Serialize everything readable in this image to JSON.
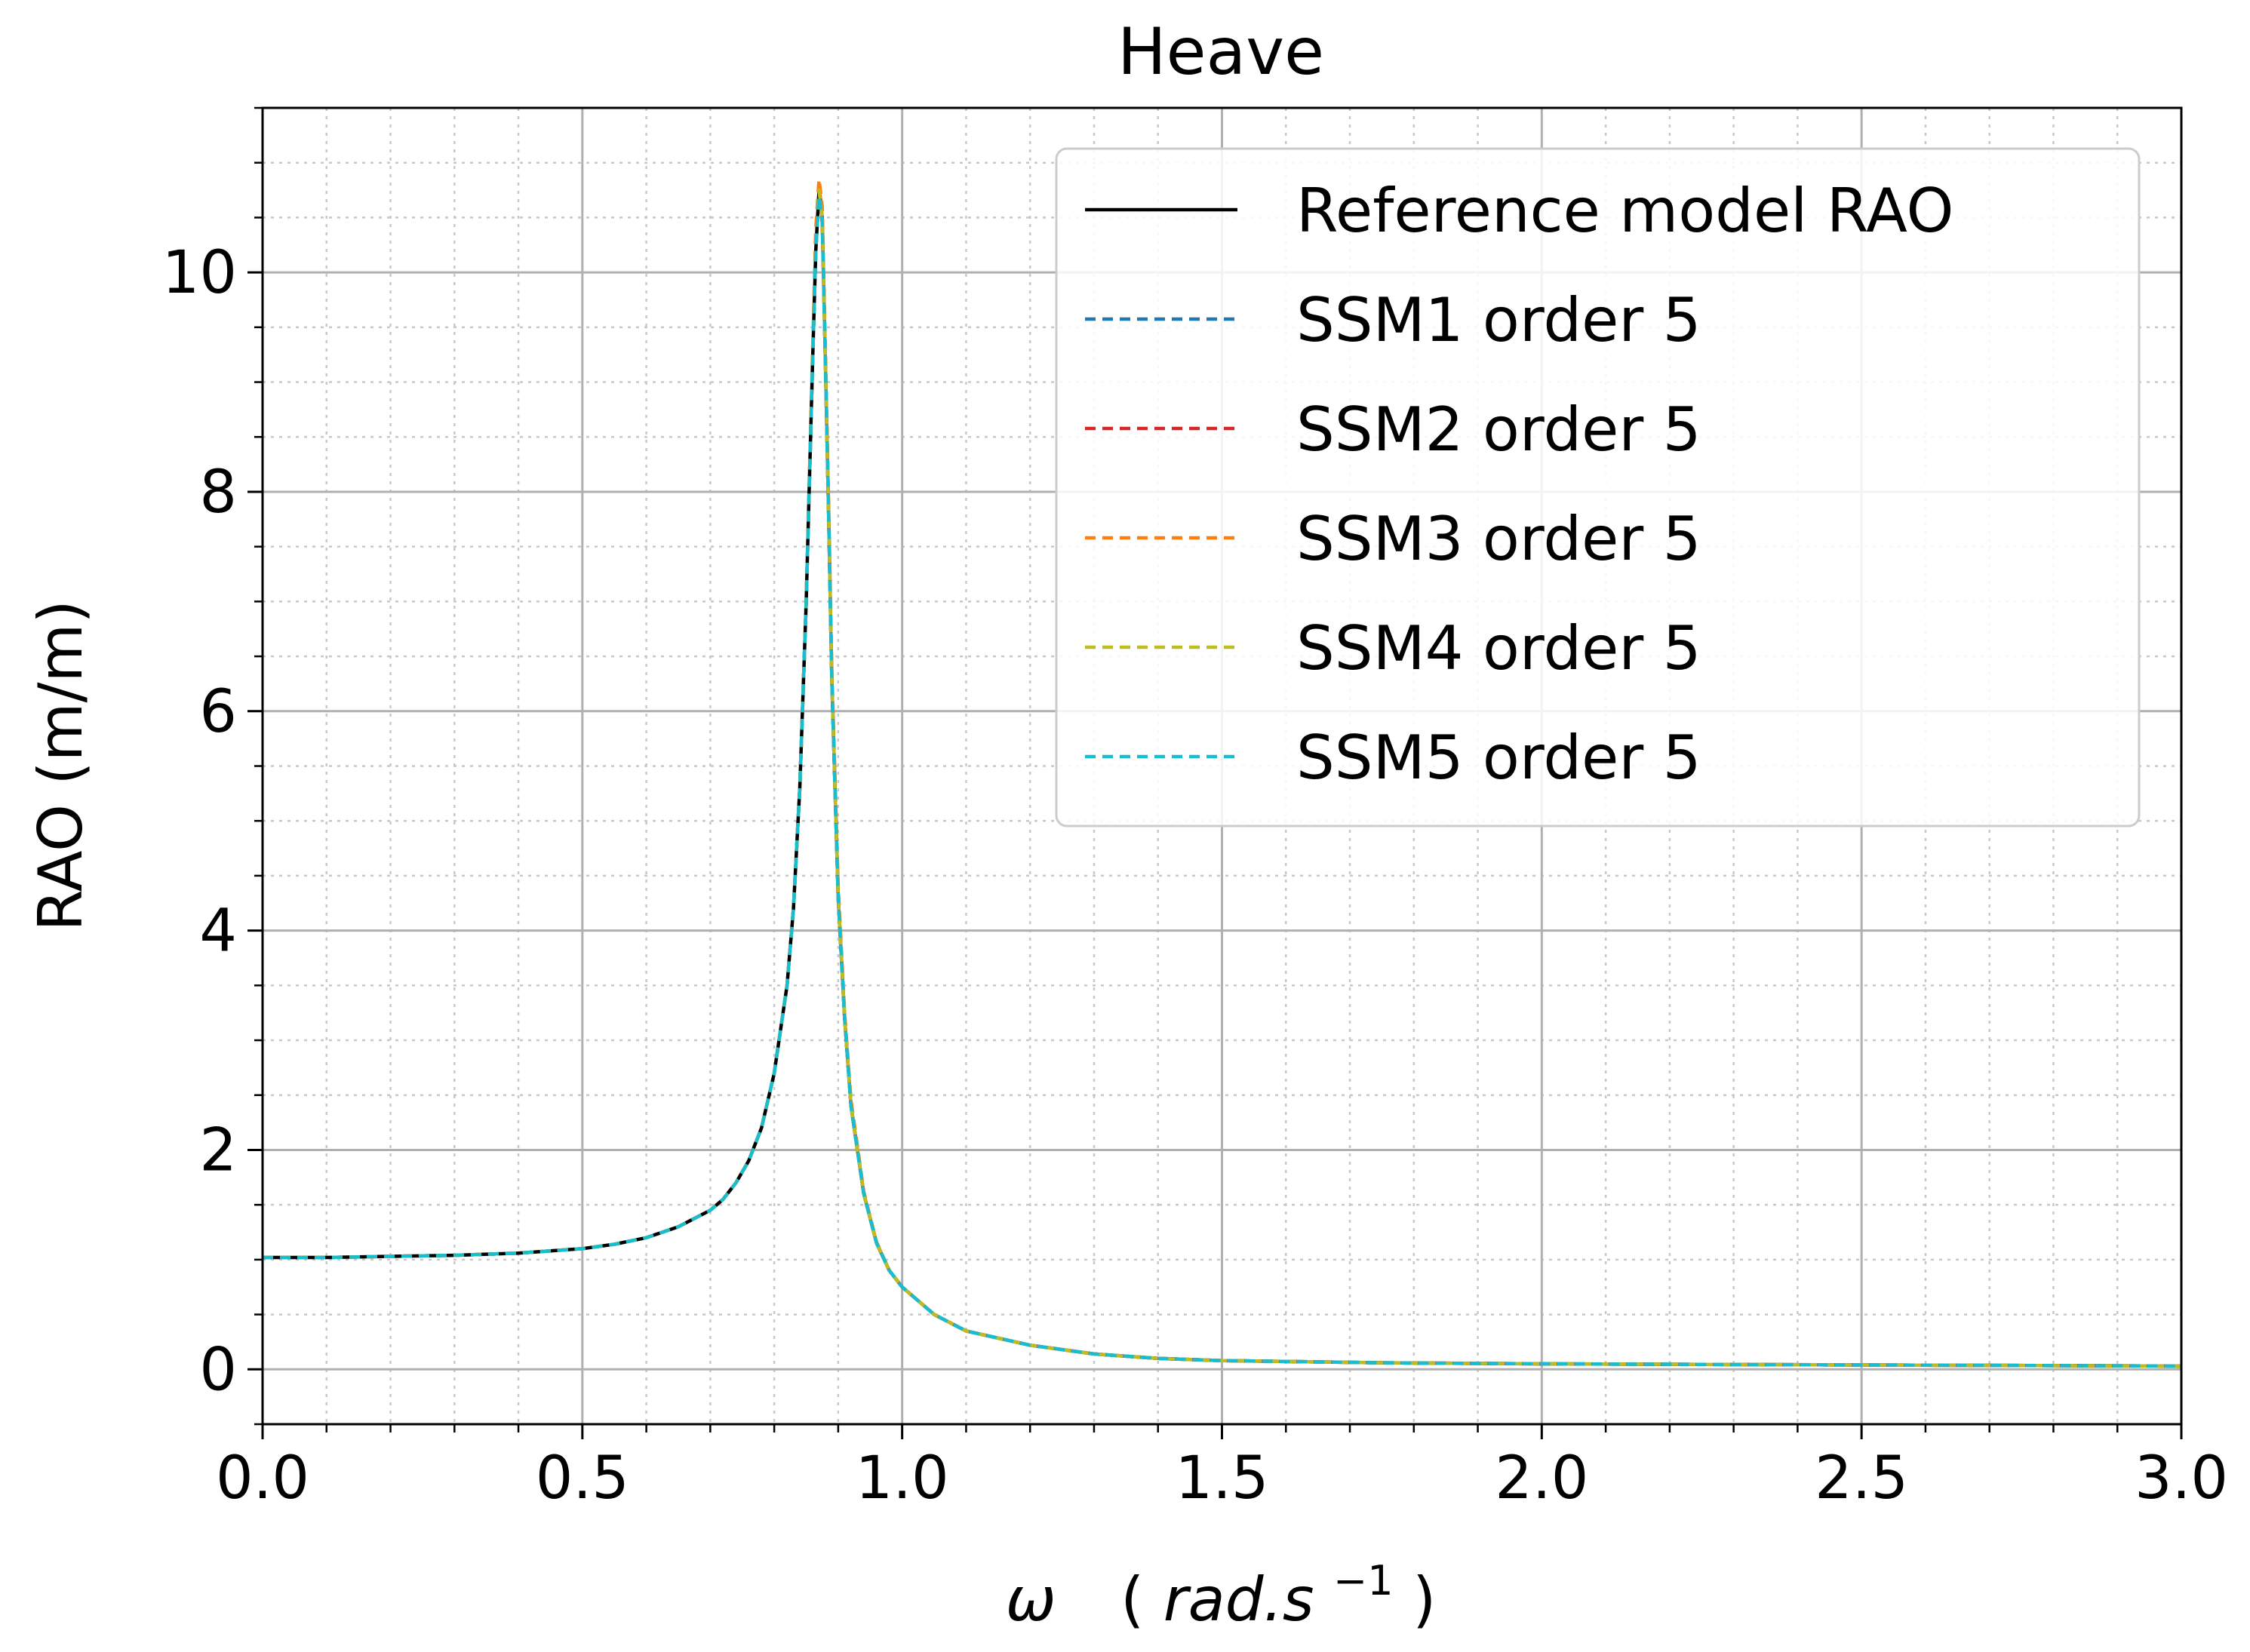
{
  "chart_data": {
    "type": "line",
    "title": "Heave",
    "xlabel": {
      "symbol": "ω",
      "unit_open": "(",
      "unit_base": "rad.s",
      "unit_exp": "−1",
      "unit_close": ")"
    },
    "ylabel": "RAO (m/m)",
    "xlim": [
      0.0,
      3.0
    ],
    "ylim": [
      -0.5,
      11.5
    ],
    "x_ticks": [
      0.0,
      0.5,
      1.0,
      1.5,
      2.0,
      2.5,
      3.0
    ],
    "x_tick_labels": [
      "0.0",
      "0.5",
      "1.0",
      "1.5",
      "2.0",
      "2.5",
      "3.0"
    ],
    "y_ticks": [
      0,
      2,
      4,
      6,
      8,
      10
    ],
    "y_tick_labels": [
      "0",
      "2",
      "4",
      "6",
      "8",
      "10"
    ],
    "x_minor_step": 0.1,
    "y_minor_step": 0.5,
    "grid": true,
    "minor_grid": true,
    "legend_position": "top-right",
    "x": [
      0.0,
      0.1,
      0.2,
      0.3,
      0.4,
      0.5,
      0.55,
      0.6,
      0.65,
      0.7,
      0.72,
      0.74,
      0.76,
      0.78,
      0.8,
      0.82,
      0.83,
      0.84,
      0.85,
      0.86,
      0.865,
      0.87,
      0.875,
      0.88,
      0.885,
      0.89,
      0.9,
      0.91,
      0.92,
      0.94,
      0.96,
      0.98,
      1.0,
      1.05,
      1.1,
      1.2,
      1.3,
      1.4,
      1.5,
      1.75,
      2.0,
      2.5,
      3.0
    ],
    "series": [
      {
        "name": "Reference model RAO",
        "color": "#000000",
        "dash": "solid",
        "values": [
          1.02,
          1.02,
          1.03,
          1.04,
          1.06,
          1.1,
          1.14,
          1.2,
          1.3,
          1.45,
          1.55,
          1.7,
          1.9,
          2.2,
          2.7,
          3.5,
          4.2,
          5.3,
          7.0,
          9.2,
          10.2,
          10.75,
          10.5,
          9.2,
          7.8,
          6.3,
          4.3,
          3.2,
          2.4,
          1.6,
          1.15,
          0.9,
          0.75,
          0.5,
          0.35,
          0.22,
          0.14,
          0.1,
          0.08,
          0.06,
          0.05,
          0.04,
          0.03
        ]
      },
      {
        "name": "SSM1 order 5",
        "color": "#1f77b4",
        "dash": "dashed",
        "values": [
          1.02,
          1.02,
          1.03,
          1.04,
          1.06,
          1.1,
          1.14,
          1.2,
          1.3,
          1.45,
          1.55,
          1.7,
          1.9,
          2.2,
          2.7,
          3.5,
          4.2,
          5.3,
          7.0,
          9.2,
          10.2,
          10.75,
          10.5,
          9.2,
          7.8,
          6.3,
          4.3,
          3.2,
          2.4,
          1.6,
          1.15,
          0.9,
          0.75,
          0.5,
          0.35,
          0.22,
          0.14,
          0.1,
          0.08,
          0.06,
          0.05,
          0.04,
          0.03
        ]
      },
      {
        "name": "SSM2 order 5",
        "color": "#d62728",
        "dash": "dashed",
        "values": [
          1.02,
          1.02,
          1.03,
          1.04,
          1.06,
          1.1,
          1.14,
          1.2,
          1.3,
          1.45,
          1.55,
          1.7,
          1.9,
          2.2,
          2.7,
          3.5,
          4.2,
          5.3,
          7.0,
          9.2,
          10.2,
          10.8,
          10.5,
          9.2,
          7.8,
          6.3,
          4.3,
          3.2,
          2.4,
          1.6,
          1.15,
          0.9,
          0.75,
          0.5,
          0.35,
          0.22,
          0.14,
          0.1,
          0.08,
          0.06,
          0.05,
          0.04,
          0.03
        ]
      },
      {
        "name": "SSM3 order 5",
        "color": "#ff7f0e",
        "dash": "dashed",
        "values": [
          1.02,
          1.02,
          1.03,
          1.04,
          1.06,
          1.1,
          1.14,
          1.2,
          1.3,
          1.45,
          1.55,
          1.7,
          1.9,
          2.2,
          2.7,
          3.5,
          4.2,
          5.3,
          7.0,
          9.3,
          10.4,
          10.85,
          10.6,
          9.3,
          7.9,
          6.4,
          4.4,
          3.25,
          2.45,
          1.62,
          1.16,
          0.9,
          0.75,
          0.5,
          0.35,
          0.22,
          0.14,
          0.1,
          0.08,
          0.06,
          0.05,
          0.04,
          0.03
        ]
      },
      {
        "name": "SSM4 order 5",
        "color": "#bcbd22",
        "dash": "dashed",
        "values": [
          1.02,
          1.02,
          1.03,
          1.04,
          1.06,
          1.1,
          1.14,
          1.2,
          1.3,
          1.45,
          1.55,
          1.7,
          1.9,
          2.2,
          2.7,
          3.5,
          4.2,
          5.3,
          7.0,
          9.2,
          10.2,
          10.75,
          10.5,
          9.2,
          7.8,
          6.3,
          4.3,
          3.2,
          2.4,
          1.6,
          1.15,
          0.9,
          0.75,
          0.5,
          0.35,
          0.22,
          0.14,
          0.1,
          0.08,
          0.06,
          0.05,
          0.04,
          0.03
        ]
      },
      {
        "name": "SSM5 order 5",
        "color": "#17becf",
        "dash": "dashed",
        "values": [
          1.02,
          1.02,
          1.03,
          1.04,
          1.06,
          1.1,
          1.14,
          1.2,
          1.3,
          1.45,
          1.55,
          1.7,
          1.9,
          2.2,
          2.7,
          3.5,
          4.2,
          5.3,
          7.0,
          9.2,
          10.2,
          10.7,
          10.45,
          9.2,
          7.8,
          6.3,
          4.3,
          3.2,
          2.4,
          1.6,
          1.15,
          0.9,
          0.75,
          0.5,
          0.35,
          0.22,
          0.14,
          0.1,
          0.08,
          0.06,
          0.05,
          0.04,
          0.03
        ]
      }
    ]
  }
}
